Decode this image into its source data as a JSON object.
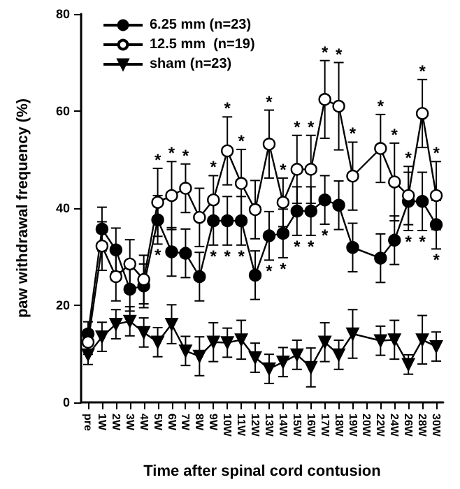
{
  "chart_data": {
    "type": "line",
    "xlabel": "Time after spinal cord contusion",
    "ylabel": "paw withdrawal frequency (%)",
    "categories": [
      "pre",
      "1W",
      "2W",
      "3W",
      "4W",
      "5W",
      "6W",
      "7W",
      "8W",
      "9W",
      "10W",
      "11W",
      "12W",
      "13W",
      "14W",
      "15W",
      "16W",
      "17W",
      "18W",
      "19W",
      "20W",
      "22W",
      "24W",
      "26W",
      "28W",
      "30W"
    ],
    "ylim": [
      0,
      80
    ],
    "yticks": [
      0,
      20,
      40,
      60,
      80
    ],
    "grid": false,
    "legend": "top left",
    "series": [
      {
        "name": "6.25 mm (n=23)",
        "color": "#000000",
        "marker": "circle",
        "values": [
          14.1,
          35.7,
          31.4,
          23.3,
          24,
          37.6,
          31,
          30.7,
          25.9,
          37.4,
          37.4,
          37.4,
          26.2,
          34.3,
          34.8,
          39.4,
          39.4,
          41.7,
          40.6,
          31.9,
          null,
          29.7,
          33.4,
          41.4,
          41.4,
          36.6
        ],
        "errors": [
          2.5,
          4.5,
          4.5,
          4.5,
          4.5,
          5,
          5,
          5,
          5,
          5,
          5,
          5,
          5,
          5,
          5,
          5,
          5,
          5,
          5,
          5,
          null,
          5,
          5,
          6,
          6,
          5
        ]
      },
      {
        "name": "12.5 mm  (n=19)",
        "color": "#000000",
        "marker": "open circle",
        "values": [
          12.4,
          32.2,
          25.9,
          28.5,
          25.3,
          41.2,
          42.6,
          44.1,
          38.1,
          41.7,
          51.8,
          45.1,
          39.7,
          53.2,
          41.2,
          48,
          48,
          62.4,
          61,
          46.6,
          null,
          52.3,
          45.4,
          42.6,
          59.5,
          42.6
        ],
        "errors": [
          2.5,
          5,
          5,
          5,
          5,
          7,
          7,
          5,
          6,
          5,
          7,
          7,
          6,
          7,
          5,
          7,
          7,
          8,
          9,
          7,
          null,
          7,
          8,
          6,
          7,
          7
        ]
      },
      {
        "name": "sham (n=23)",
        "color": "#000000",
        "marker": "triangle",
        "values": [
          9.8,
          13.5,
          16.1,
          16.7,
          14.4,
          12.4,
          16.1,
          10.6,
          9.5,
          12.4,
          12.3,
          12.9,
          9.2,
          6.9,
          8.3,
          9.8,
          7.2,
          12.4,
          9.8,
          14.1,
          null,
          12.7,
          12.9,
          7.8,
          12.9,
          11.5
        ],
        "errors": [
          2,
          3,
          3,
          3,
          3,
          3,
          4,
          3,
          4,
          4,
          3,
          4,
          3,
          3,
          3,
          3,
          4,
          4,
          3,
          5,
          null,
          3,
          4,
          2,
          5,
          3
        ]
      }
    ],
    "annotations": [
      {
        "text": "*",
        "x": "5W",
        "y": 48.2
      },
      {
        "text": "*",
        "x": "6W",
        "y": 49.6
      },
      {
        "text": "*",
        "x": "7W",
        "y": 49.1
      },
      {
        "text": "*",
        "x": "9W",
        "y": 46.7
      },
      {
        "text": "*",
        "x": "10W",
        "y": 58.8
      },
      {
        "text": "*",
        "x": "11W",
        "y": 52.1
      },
      {
        "text": "*",
        "x": "13W",
        "y": 60.2
      },
      {
        "text": "*",
        "x": "14W",
        "y": 46.2
      },
      {
        "text": "*",
        "x": "15W",
        "y": 55
      },
      {
        "text": "*",
        "x": "16W",
        "y": 55
      },
      {
        "text": "*",
        "x": "17W",
        "y": 70.4
      },
      {
        "text": "*",
        "x": "18W",
        "y": 70
      },
      {
        "text": "*",
        "x": "19W",
        "y": 53.6
      },
      {
        "text": "*",
        "x": "22W",
        "y": 59.3
      },
      {
        "text": "*",
        "x": "24W",
        "y": 53.4
      },
      {
        "text": "*",
        "x": "26W",
        "y": 48.6
      },
      {
        "text": "*",
        "x": "28W",
        "y": 66.5
      },
      {
        "text": "*",
        "x": "30W",
        "y": 49.6
      },
      {
        "text": "*",
        "x": "5W",
        "y": 32.6
      },
      {
        "text": "*",
        "x": "9W",
        "y": 32.4
      },
      {
        "text": "*",
        "x": "10W",
        "y": 32.4
      },
      {
        "text": "*",
        "x": "11W",
        "y": 32.4
      },
      {
        "text": "*",
        "x": "13W",
        "y": 29.3
      },
      {
        "text": "*",
        "x": "14W",
        "y": 29.8
      },
      {
        "text": "*",
        "x": "15W",
        "y": 34.4
      },
      {
        "text": "*",
        "x": "16W",
        "y": 34.4
      },
      {
        "text": "*",
        "x": "17W",
        "y": 36.7
      },
      {
        "text": "*",
        "x": "26W",
        "y": 35.4
      },
      {
        "text": "*",
        "x": "28W",
        "y": 35.4
      },
      {
        "text": "*",
        "x": "30W",
        "y": 31.6
      }
    ]
  }
}
